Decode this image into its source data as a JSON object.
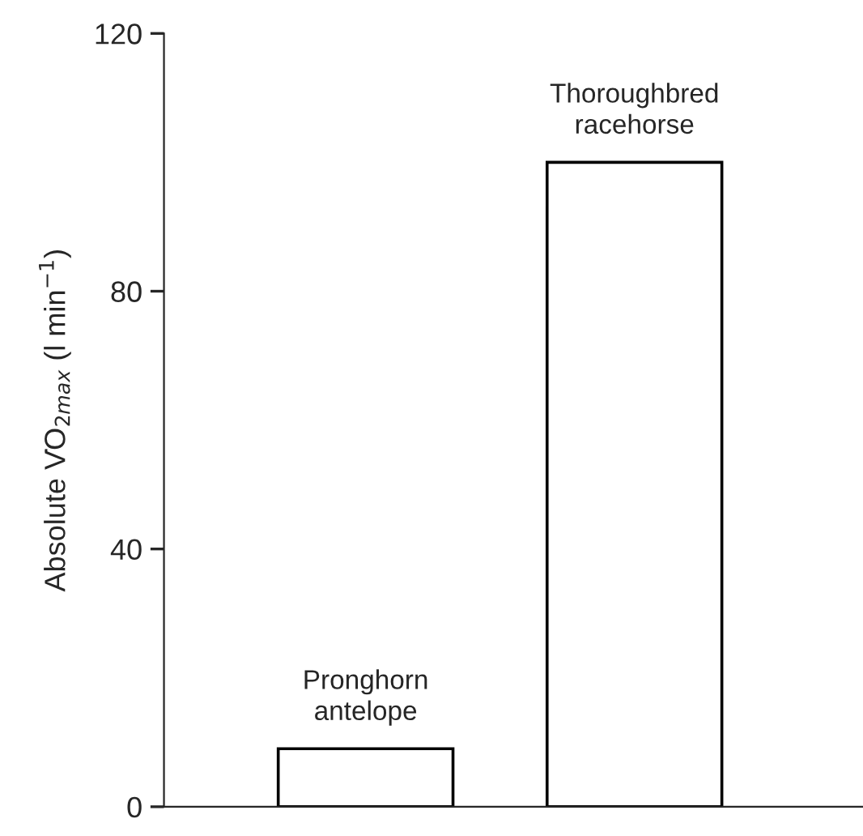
{
  "chart_data": {
    "type": "bar",
    "ylabel": "Absolute V̇O$_{2max}$ (l min$^{−1}$)",
    "categories": [
      "Pronghorn\nantelope",
      "Thoroughbred\nracehorse"
    ],
    "values": [
      9,
      100
    ],
    "color": "#ffffff",
    "ylim": [
      0,
      120
    ],
    "yticks": [
      0,
      40,
      80,
      120
    ],
    "grid": false
  }
}
